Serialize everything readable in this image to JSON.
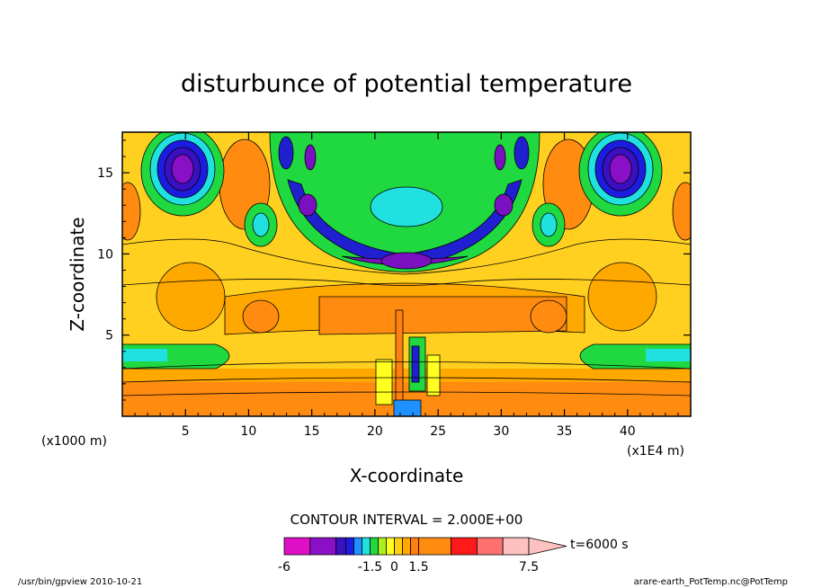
{
  "chart_data": {
    "type": "heatmap",
    "title": "disturbunce of potential temperature",
    "xlabel": "X-coordinate",
    "ylabel": "Z-coordinate",
    "x_scale_note": "(x1000 m)",
    "x_factor_note": "(x1E4 m)",
    "x_ticks": [
      "5",
      "10",
      "15",
      "20",
      "25",
      "30",
      "35",
      "40"
    ],
    "x_tick_values": [
      5,
      10,
      15,
      20,
      25,
      30,
      35,
      40
    ],
    "y_ticks": [
      "5",
      "10",
      "15"
    ],
    "y_tick_values": [
      5,
      10,
      15
    ],
    "xlim": [
      0,
      45
    ],
    "ylim": [
      0,
      17.5
    ],
    "contour_interval": "CONTOUR INTERVAL = 2.000E+00",
    "time_label": "t=6000 s",
    "colorbar": {
      "levels": [
        -6,
        -5,
        -4,
        -3,
        -2.5,
        -2,
        -1.5,
        -1,
        -0.5,
        0,
        0.5,
        1,
        1.5,
        3,
        4.5,
        6,
        7.5
      ],
      "colors": [
        "#e010c8",
        "#8a10c8",
        "#3a10c0",
        "#1c1ce0",
        "#1e90ff",
        "#20e0e0",
        "#20d840",
        "#a8f020",
        "#ffff20",
        "#ffd010",
        "#ffa800",
        "#ff8010",
        "#ff8c10",
        "#ff1a1a",
        "#ff7070",
        "#ffc0c0"
      ],
      "tick_labels": [
        "-6",
        "-1.5",
        "0",
        "1.5",
        "7.5"
      ]
    },
    "grid": false,
    "legend": "colorbar-bottom"
  },
  "footer": {
    "left": "/usr/bin/gpview  2010-10-21",
    "right": "arare-earth_PotTemp.nc@PotTemp"
  },
  "colors": {
    "background": "#ffffff",
    "neutral": "#ffd020",
    "warm": "#ff8c10",
    "warmer": "#ffa800",
    "cold_core": "#7a10c0",
    "cold": "#2020d0",
    "cool": "#20d840",
    "cyan": "#20e0e0"
  }
}
